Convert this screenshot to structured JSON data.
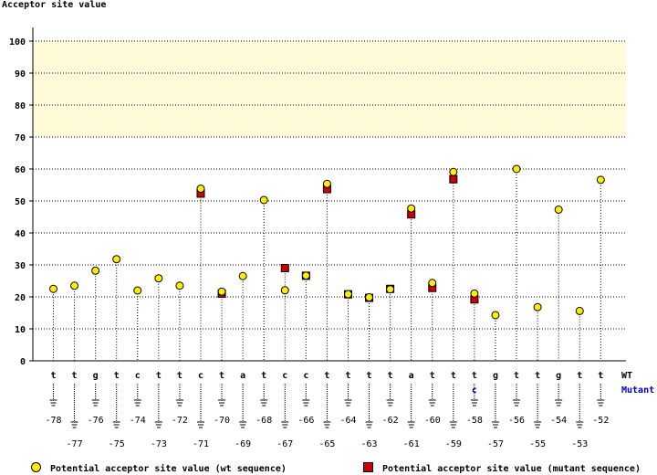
{
  "chart_data": {
    "type": "scatter",
    "ylabel": "Acceptor site value",
    "ylim": [
      0,
      100
    ],
    "yticks": [
      0,
      10,
      20,
      30,
      40,
      50,
      60,
      70,
      80,
      90,
      100
    ],
    "highlight_band": [
      70,
      100
    ],
    "grid": true,
    "row_labels": {
      "wt": "WT",
      "mutant": "Mutant"
    },
    "positions": [
      -78,
      -77,
      -76,
      -75,
      -74,
      -73,
      -72,
      -71,
      -70,
      -69,
      -68,
      -67,
      -66,
      -65,
      -64,
      -63,
      -62,
      -61,
      -60,
      -59,
      -58,
      -57,
      -56,
      -55,
      -54,
      -53,
      -52
    ],
    "wt_bases": [
      "t",
      "t",
      "g",
      "t",
      "c",
      "t",
      "t",
      "c",
      "t",
      "a",
      "t",
      "c",
      "c",
      "t",
      "t",
      "t",
      "t",
      "a",
      "t",
      "t",
      "t",
      "g",
      "t",
      "t",
      "g",
      "t",
      "t"
    ],
    "mutant_bases": [
      "",
      "",
      "",
      "",
      "",
      "",
      "",
      "",
      "",
      "",
      "",
      "",
      "",
      "",
      "",
      "",
      "",
      "",
      "",
      "",
      "c",
      "",
      "",
      "",
      "",
      "",
      ""
    ],
    "series": [
      {
        "name": "Potential acceptor site value (wt sequence)",
        "values": [
          22.5,
          23.5,
          28.2,
          31.8,
          22,
          25.8,
          23.5,
          53,
          20.8,
          26.5,
          50.3,
          21.2,
          25.8,
          54.5,
          20,
          19,
          21.5,
          46.8,
          23.5,
          58.2,
          20.2,
          14.3,
          60,
          16.8,
          47.3,
          15.6,
          56.6
        ]
      },
      {
        "name": "Potential acceptor site value (mutant sequence)",
        "values": [
          null,
          null,
          null,
          null,
          null,
          null,
          null,
          52.3,
          21,
          null,
          null,
          29,
          26.6,
          53.7,
          20.8,
          19.7,
          22.5,
          45.8,
          22.8,
          56.8,
          19.2,
          null,
          null,
          null,
          null,
          null,
          null
        ]
      }
    ]
  },
  "legend": {
    "wt_label": "Potential acceptor site value (wt sequence)",
    "mutant_label": "Potential acceptor site value (mutant sequence)"
  },
  "colors": {
    "wt": "#ffee00",
    "mutant": "#cc0000",
    "band": "#fffbd9",
    "mutant_text": "#0000cc"
  }
}
